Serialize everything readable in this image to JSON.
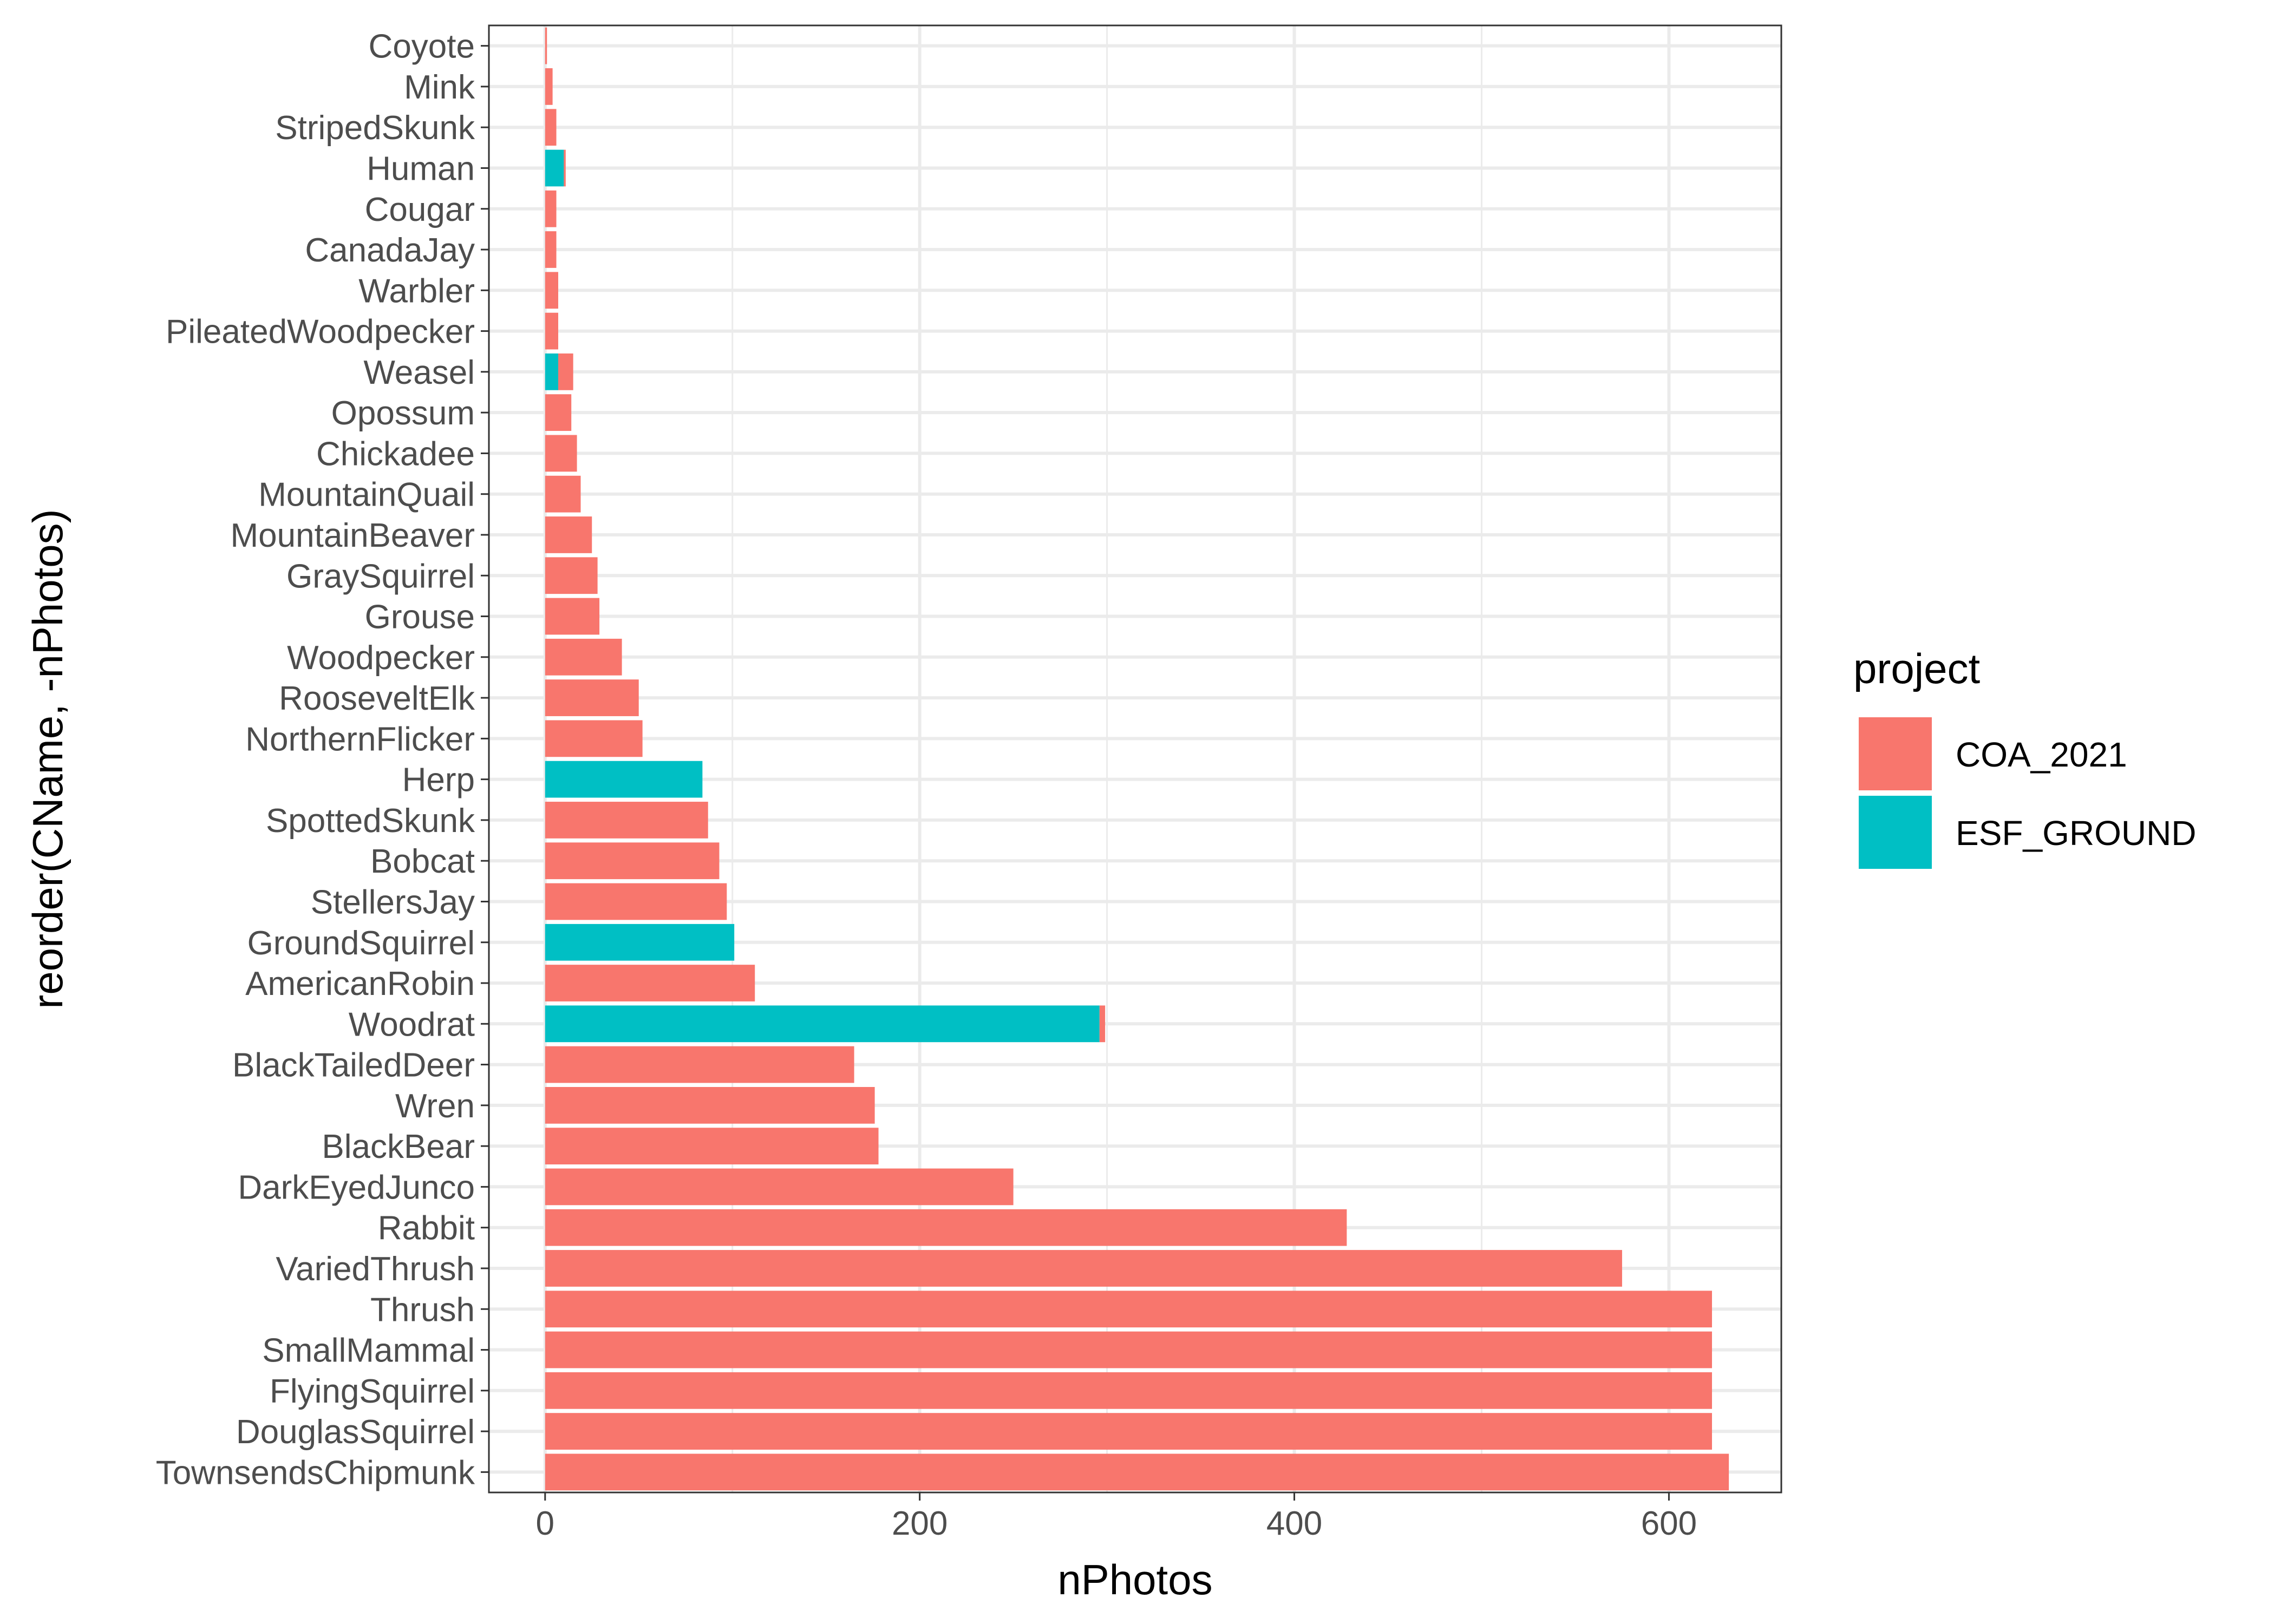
{
  "chart_data": {
    "type": "bar",
    "orientation": "horizontal",
    "stacked": true,
    "xlabel": "nPhotos",
    "ylabel": "reorder(CName, -nPhotos)",
    "xlim": [
      -30,
      660
    ],
    "xticks": [
      0,
      200,
      400,
      600
    ],
    "grid": true,
    "legend_position": "right",
    "legend": {
      "title": "project",
      "entries": [
        {
          "name": "COA_2021",
          "color": "#F8766D"
        },
        {
          "name": "ESF_GROUND",
          "color": "#00BFC4"
        }
      ]
    },
    "categories": [
      "Coyote",
      "Mink",
      "StripedSkunk",
      "Human",
      "Cougar",
      "CanadaJay",
      "Warbler",
      "PileatedWoodpecker",
      "Weasel",
      "Opossum",
      "Chickadee",
      "MountainQuail",
      "MountainBeaver",
      "GraySquirrel",
      "Grouse",
      "Woodpecker",
      "RooseveltElk",
      "NorthernFlicker",
      "Herp",
      "SpottedSkunk",
      "Bobcat",
      "StellersJay",
      "GroundSquirrel",
      "AmericanRobin",
      "Woodrat",
      "BlackTailedDeer",
      "Wren",
      "BlackBear",
      "DarkEyedJunco",
      "Rabbit",
      "VariedThrush",
      "Thrush",
      "SmallMammal",
      "FlyingSquirrel",
      "DouglasSquirrel",
      "TownsendsChipmunk"
    ],
    "series": [
      {
        "name": "ESF_GROUND",
        "color": "#00BFC4",
        "values": [
          0,
          0,
          0,
          10,
          0,
          0,
          0,
          0,
          7,
          0,
          0,
          0,
          0,
          0,
          0,
          0,
          0,
          0,
          84,
          0,
          0,
          0,
          101,
          0,
          296,
          0,
          0,
          0,
          0,
          0,
          0,
          0,
          0,
          0,
          0,
          0
        ]
      },
      {
        "name": "COA_2021",
        "color": "#F8766D",
        "values": [
          1,
          4,
          6,
          1,
          6,
          6,
          7,
          7,
          8,
          14,
          17,
          19,
          25,
          28,
          29,
          41,
          50,
          52,
          0,
          87,
          93,
          97,
          0,
          112,
          3,
          165,
          176,
          178,
          250,
          428,
          575,
          623,
          623,
          623,
          623,
          632
        ]
      }
    ]
  }
}
